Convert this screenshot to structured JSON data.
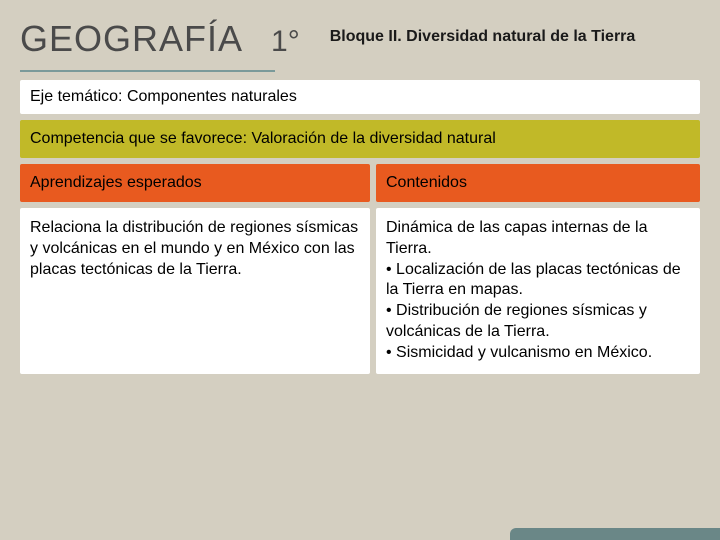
{
  "header": {
    "title": "GEOGRAFÍA",
    "grade": "1°",
    "bloque": "Bloque II. Diversidad natural de la Tierra"
  },
  "eje": {
    "label": "Eje temático: ",
    "value": "Componentes naturales"
  },
  "competencia": {
    "label": "Competencia que se favorece: ",
    "value": "Valoración de la diversidad natural"
  },
  "columns": {
    "left": "Aprendizajes esperados",
    "right": "Contenidos"
  },
  "body": {
    "left": "Relaciona la distribución de regiones sísmicas y volcánicas en el mundo y en México con las placas tectónicas de la Tierra.",
    "right": "Dinámica de las capas internas de la Tierra.\n• Localización de las placas tectónicas de la Tierra en mapas.\n• Distribución de regiones sísmicas y volcánicas de la Tierra.\n• Sismicidad y vulcanismo en México."
  },
  "colors": {
    "background": "#d4cfc1",
    "white": "#ffffff",
    "olive": "#c1b928",
    "orange": "#e85a1f",
    "teal": "#6a8787"
  }
}
